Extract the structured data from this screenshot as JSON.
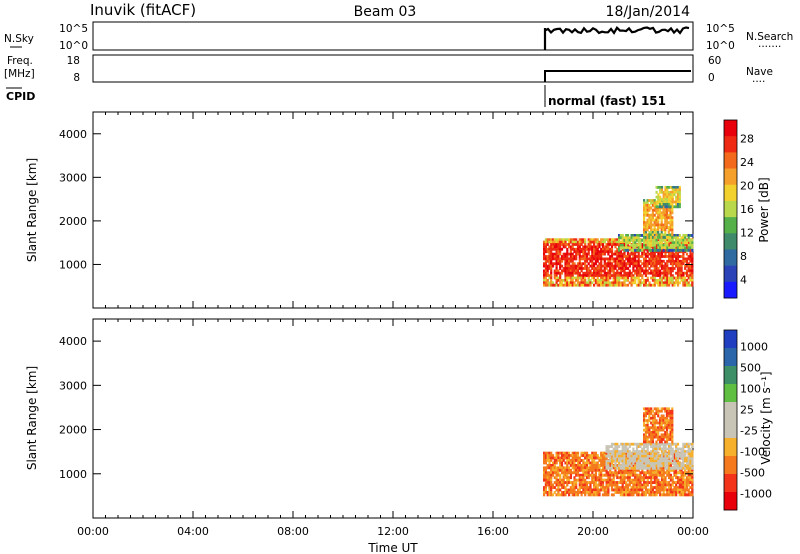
{
  "header": {
    "station": "Inuvik (fitACF)",
    "beam": "Beam 03",
    "date": "18/Jan/2014"
  },
  "nsky_panel": {
    "left_label": "N.Sky",
    "right_label": "N.Search",
    "right_ticks": [
      "10^5",
      "10^0"
    ],
    "left_ticks": [
      "10^5",
      "10^0"
    ]
  },
  "freq_panel": {
    "left_label_1": "Freq.",
    "left_label_2": "[MHz]",
    "right_label": "Nave",
    "left_ticks": [
      "18",
      "8"
    ],
    "right_ticks": [
      "60",
      "0"
    ]
  },
  "cpid_panel": {
    "label": "CPID",
    "mode": "normal (fast) 151"
  },
  "time_axis": {
    "label": "Time UT",
    "ticks": [
      "00:00",
      "04:00",
      "08:00",
      "12:00",
      "16:00",
      "20:00",
      "00:00"
    ]
  },
  "colors": {
    "power_scale": [
      "#1a1aff",
      "#2a44b8",
      "#2f6aa0",
      "#3f8a6a",
      "#56b04a",
      "#b9d84b",
      "#f2d12f",
      "#f5a02a",
      "#f36a1c",
      "#ef2a12",
      "#e8000b"
    ],
    "velocity_scale": [
      "#e8000b",
      "#f3341a",
      "#f57a1d",
      "#f7b02b",
      "#c8c4b6",
      "#c8c4b6",
      "#5fbf43",
      "#3c8f66",
      "#2b66aa",
      "#1f3fc0"
    ]
  },
  "chart_data": [
    {
      "type": "heatmap",
      "title": "",
      "xlabel": "",
      "ylabel": "Slant Range [km]",
      "xlim_hours": [
        0,
        24
      ],
      "ylim_km": [
        0,
        4500
      ],
      "yticks": [
        "1000",
        "2000",
        "3000",
        "4000"
      ],
      "colorbar": {
        "label": "Power [dB]",
        "ticks": [
          "28",
          "24",
          "20",
          "16",
          "12",
          "8",
          "4"
        ],
        "range": [
          0,
          30
        ]
      },
      "echo_regions": [
        {
          "t_start": 18.0,
          "t_end": 24.0,
          "range_min_km": 500,
          "range_max_km": 1600,
          "power_db": 26
        },
        {
          "t_start": 21.0,
          "t_end": 24.0,
          "range_min_km": 1300,
          "range_max_km": 1700,
          "power_db": 15
        },
        {
          "t_start": 22.0,
          "t_end": 23.2,
          "range_min_km": 1600,
          "range_max_km": 2500,
          "power_db": 20
        },
        {
          "t_start": 22.5,
          "t_end": 23.5,
          "range_min_km": 2300,
          "range_max_km": 2800,
          "power_db": 17
        }
      ]
    },
    {
      "type": "heatmap",
      "title": "",
      "xlabel": "Time UT",
      "ylabel": "Slant Range [km]",
      "xlim_hours": [
        0,
        24
      ],
      "ylim_km": [
        0,
        4500
      ],
      "yticks": [
        "1000",
        "2000",
        "3000",
        "4000"
      ],
      "colorbar": {
        "label": "Velocity [m s⁻¹]",
        "ticks": [
          "1000",
          "500",
          "100",
          "25",
          "-25",
          "-100",
          "-500",
          "-1000"
        ],
        "range": [
          -1000,
          1000
        ]
      },
      "echo_regions": [
        {
          "t_start": 18.0,
          "t_end": 24.0,
          "range_min_km": 500,
          "range_max_km": 1500,
          "velocity_ms": -300
        },
        {
          "t_start": 20.5,
          "t_end": 24.0,
          "range_min_km": 1100,
          "range_max_km": 1700,
          "velocity_ms": 0
        },
        {
          "t_start": 22.0,
          "t_end": 23.2,
          "range_min_km": 1700,
          "range_max_km": 2500,
          "velocity_ms": -200
        }
      ]
    }
  ]
}
